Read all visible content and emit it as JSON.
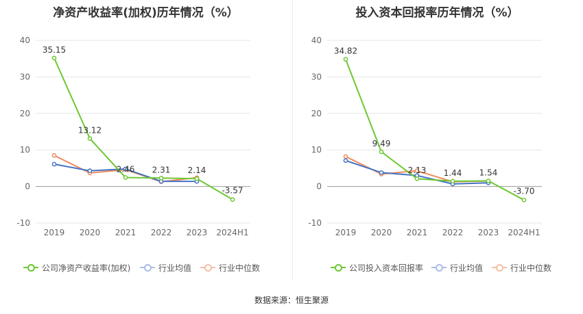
{
  "source_text": "数据来源：恒生聚源",
  "legend_common": [
    "行业均值",
    "行业中位数"
  ],
  "colors": {
    "company": "#6cc832",
    "mean": "#4472c4",
    "median": "#ed8b5c"
  },
  "chart_data": [
    {
      "type": "line",
      "title": "净资产收益率(加权)历年情况（%）",
      "categories": [
        "2019",
        "2020",
        "2021",
        "2022",
        "2023",
        "2024H1"
      ],
      "ylim": [
        -10,
        40
      ],
      "yticks": [
        -10,
        0,
        10,
        20,
        30,
        40
      ],
      "grid": true,
      "legend_position": "bottom",
      "series": [
        {
          "name": "公司净资产收益率(加权)",
          "color": "#6cc832",
          "values": [
            35.15,
            13.12,
            2.46,
            2.31,
            2.14,
            -3.57
          ],
          "labels": [
            "35.15",
            "13.12",
            "2.46",
            "2.31",
            "2.14",
            "-3.57"
          ]
        },
        {
          "name": "行业均值",
          "color": "#4472c4",
          "values": [
            6.1,
            4.3,
            4.8,
            1.4,
            1.4,
            null
          ]
        },
        {
          "name": "行业中位数",
          "color": "#ed8b5c",
          "values": [
            8.5,
            3.7,
            4.6,
            1.3,
            2.4,
            null
          ]
        }
      ]
    },
    {
      "type": "line",
      "title": "投入资本回报率历年情况（%）",
      "categories": [
        "2019",
        "2020",
        "2021",
        "2022",
        "2023",
        "2024H1"
      ],
      "ylim": [
        -10,
        40
      ],
      "yticks": [
        -10,
        0,
        10,
        20,
        30,
        40
      ],
      "grid": true,
      "legend_position": "bottom",
      "series": [
        {
          "name": "公司投入资本回报率",
          "color": "#6cc832",
          "values": [
            34.82,
            9.49,
            2.13,
            1.44,
            1.54,
            -3.7
          ],
          "labels": [
            "34.82",
            "9.49",
            "2.13",
            "1.44",
            "1.54",
            "-3.70"
          ]
        },
        {
          "name": "行业均值",
          "color": "#4472c4",
          "values": [
            7.1,
            3.8,
            3.0,
            0.7,
            1.0,
            null
          ]
        },
        {
          "name": "行业中位数",
          "color": "#ed8b5c",
          "values": [
            8.2,
            3.4,
            4.3,
            1.3,
            1.5,
            null
          ]
        }
      ]
    }
  ]
}
